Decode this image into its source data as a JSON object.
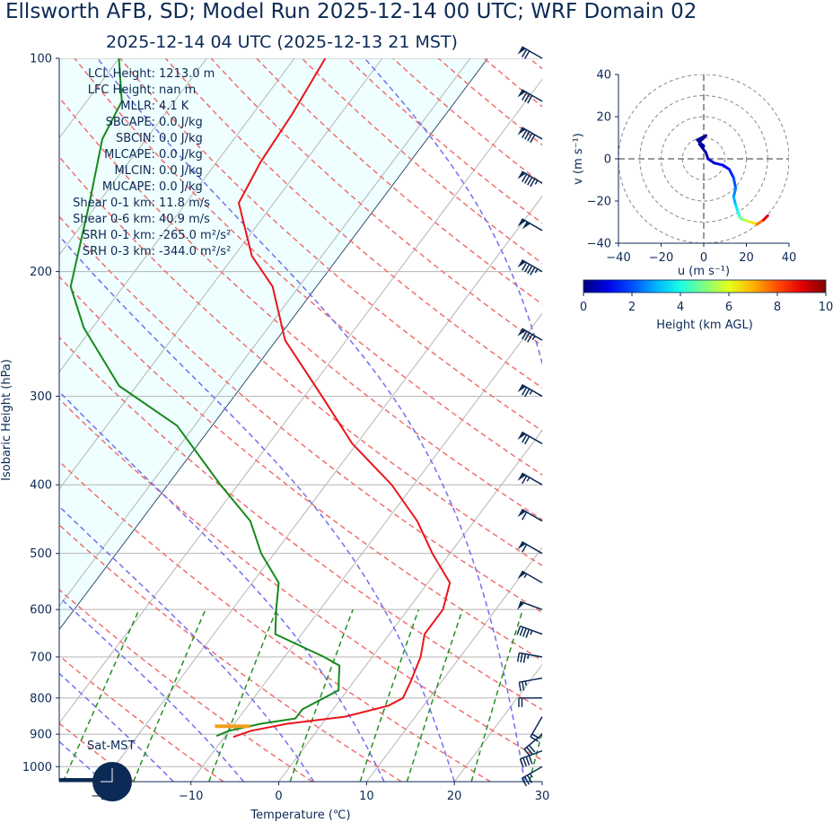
{
  "title": "Ellsworth AFB, SD; Model Run 2025-12-14 00 UTC; WRF Domain 02",
  "subtitle": "2025-12-14 04 UTC  (2025-12-13 21 MST)",
  "colors": {
    "temperature": "#e8161a",
    "dewpoint": "#158a1a",
    "dry_adiabat": "#f07070",
    "moist_adiabat": "#7070f0",
    "mixing_ratio": "#239023",
    "isotherm": "#b5b5b5",
    "cloud_fill": "#effefe",
    "barb": "#0b2a55",
    "inversion": "#f0a020"
  },
  "indices": [
    {
      "label": "LCL Height:",
      "value": "1213.0 m"
    },
    {
      "label": "LFC Height:",
      "value": "nan m"
    },
    {
      "label": "MLLR:",
      "value": "4.1 K"
    },
    {
      "label": "SBCAPE:",
      "value": "0.0 J/kg"
    },
    {
      "label": "SBCIN:",
      "value": "0.0 J/kg"
    },
    {
      "label": "MLCAPE:",
      "value": "0.0 J/kg"
    },
    {
      "label": "MLCIN:",
      "value": "0.0 J/kg"
    },
    {
      "label": "MUCAPE:",
      "value": "0.0 J/kg"
    },
    {
      "label": "Shear 0-1 km:",
      "value": "11.8 m/s"
    },
    {
      "label": "Shear 0-6 km:",
      "value": "40.9 m/s"
    },
    {
      "label": "SRH 0-1 km:",
      "value": "-265.0 m²/s²"
    },
    {
      "label": "SRH 0-3 km:",
      "value": "-344.0 m²/s²"
    }
  ],
  "sat_label": "Sat-MST",
  "chart_data": [
    {
      "type": "line",
      "name": "skew-t",
      "xlabel": "Temperature (℃)",
      "ylabel": "Isobaric Height (hPa)",
      "xlim": [
        -25,
        30
      ],
      "ylim": [
        1050,
        100
      ],
      "y_log": true,
      "x_ticks": [
        -20,
        -10,
        0,
        10,
        20,
        30
      ],
      "x_tick_labels": [
        "−20",
        "−10",
        "0",
        "10",
        "20",
        "30"
      ],
      "y_ticks": [
        100,
        200,
        300,
        400,
        500,
        600,
        700,
        800,
        900,
        1000
      ],
      "y_tick_labels": [
        "100",
        "200",
        "300",
        "400",
        "500",
        "600",
        "700",
        "800",
        "900",
        "1000"
      ],
      "grid": true,
      "series": [
        {
          "key": "temperature",
          "points": [
            [
              908,
              -9.0
            ],
            [
              890,
              -7.5
            ],
            [
              870,
              -4.0
            ],
            [
              850,
              2.0
            ],
            [
              820,
              6.0
            ],
            [
              800,
              7.0
            ],
            [
              760,
              6.5
            ],
            [
              700,
              5.5
            ],
            [
              650,
              4.0
            ],
            [
              600,
              4.0
            ],
            [
              550,
              2.5
            ],
            [
              500,
              -2.0
            ],
            [
              450,
              -6.5
            ],
            [
              400,
              -12.5
            ],
            [
              350,
              -20.5
            ],
            [
              300,
              -28.0
            ],
            [
              250,
              -37.0
            ],
            [
              210,
              -43.0
            ],
            [
              190,
              -48.0
            ],
            [
              160,
              -54.0
            ],
            [
              140,
              -55.0
            ],
            [
              120,
              -55.5
            ],
            [
              100,
              -56.5
            ]
          ]
        },
        {
          "key": "dewpoint",
          "points": [
            [
              905,
              -11.0
            ],
            [
              890,
              -10.0
            ],
            [
              870,
              -7.0
            ],
            [
              855,
              -3.5
            ],
            [
              830,
              -3.5
            ],
            [
              810,
              -2.5
            ],
            [
              780,
              -1.0
            ],
            [
              750,
              -2.0
            ],
            [
              720,
              -3.0
            ],
            [
              700,
              -5.5
            ],
            [
              650,
              -13.0
            ],
            [
              600,
              -15.0
            ],
            [
              550,
              -17.0
            ],
            [
              500,
              -21.5
            ],
            [
              450,
              -25.5
            ],
            [
              400,
              -32.0
            ],
            [
              330,
              -42.0
            ],
            [
              290,
              -52.0
            ],
            [
              240,
              -61.0
            ],
            [
              210,
              -66.0
            ],
            [
              160,
              -71.0
            ],
            [
              130,
              -75.0
            ],
            [
              115,
              -76.0
            ],
            [
              100,
              -80.0
            ]
          ]
        }
      ],
      "inversion_level": {
        "pressure_hPa": 877,
        "temp_range": [
          -12.0,
          -8.0
        ]
      },
      "wind_barbs": [
        {
          "p": 1000,
          "speed_kt": 35,
          "dir_deg": 240
        },
        {
          "p": 950,
          "speed_kt": 40,
          "dir_deg": 250
        },
        {
          "p": 900,
          "speed_kt": 30,
          "dir_deg": 230
        },
        {
          "p": 850,
          "speed_kt": 20,
          "dir_deg": 210
        },
        {
          "p": 800,
          "speed_kt": 20,
          "dir_deg": 270
        },
        {
          "p": 750,
          "speed_kt": 25,
          "dir_deg": 260
        },
        {
          "p": 700,
          "speed_kt": 35,
          "dir_deg": 280
        },
        {
          "p": 650,
          "speed_kt": 45,
          "dir_deg": 290
        },
        {
          "p": 600,
          "speed_kt": 50,
          "dir_deg": 290
        },
        {
          "p": 550,
          "speed_kt": 55,
          "dir_deg": 300
        },
        {
          "p": 500,
          "speed_kt": 60,
          "dir_deg": 300
        },
        {
          "p": 450,
          "speed_kt": 60,
          "dir_deg": 300
        },
        {
          "p": 400,
          "speed_kt": 65,
          "dir_deg": 300
        },
        {
          "p": 350,
          "speed_kt": 70,
          "dir_deg": 300
        },
        {
          "p": 300,
          "speed_kt": 75,
          "dir_deg": 300
        },
        {
          "p": 250,
          "speed_kt": 85,
          "dir_deg": 300
        },
        {
          "p": 200,
          "speed_kt": 95,
          "dir_deg": 300
        },
        {
          "p": 175,
          "speed_kt": 100,
          "dir_deg": 300
        },
        {
          "p": 150,
          "speed_kt": 95,
          "dir_deg": 300
        },
        {
          "p": 130,
          "speed_kt": 90,
          "dir_deg": 300
        },
        {
          "p": 115,
          "speed_kt": 80,
          "dir_deg": 300
        },
        {
          "p": 100,
          "speed_kt": 70,
          "dir_deg": 300
        }
      ]
    },
    {
      "type": "line",
      "name": "hodograph",
      "xlabel": "u (m s⁻¹)",
      "ylabel": "v (m s⁻¹)",
      "xlim": [
        -40,
        40
      ],
      "ylim": [
        -40,
        40
      ],
      "x_ticks": [
        -40,
        -20,
        0,
        20,
        40
      ],
      "x_tick_labels": [
        "−40",
        "−20",
        "0",
        "20",
        "40"
      ],
      "y_ticks": [
        -40,
        -20,
        0,
        20,
        40
      ],
      "y_tick_labels": [
        "−40",
        "−20",
        "0",
        "20",
        "40"
      ],
      "ring_radii": [
        10,
        20,
        30,
        40
      ],
      "points": [
        {
          "u": -2,
          "v": 8,
          "h": 0.0
        },
        {
          "u": 1,
          "v": 11,
          "h": 0.1
        },
        {
          "u": -3,
          "v": 9,
          "h": 0.2
        },
        {
          "u": 0,
          "v": 6,
          "h": 0.3
        },
        {
          "u": -2,
          "v": 7,
          "h": 0.35
        },
        {
          "u": 1,
          "v": 3,
          "h": 0.5
        },
        {
          "u": 2,
          "v": 0,
          "h": 0.7
        },
        {
          "u": 5,
          "v": -2,
          "h": 0.9
        },
        {
          "u": 9,
          "v": -3,
          "h": 1.1
        },
        {
          "u": 12,
          "v": -5,
          "h": 1.4
        },
        {
          "u": 14,
          "v": -9,
          "h": 1.8
        },
        {
          "u": 15,
          "v": -14,
          "h": 2.3
        },
        {
          "u": 14,
          "v": -18,
          "h": 2.8
        },
        {
          "u": 15,
          "v": -22,
          "h": 3.2
        },
        {
          "u": 16,
          "v": -25,
          "h": 3.8
        },
        {
          "u": 17,
          "v": -28,
          "h": 4.5
        },
        {
          "u": 19,
          "v": -29,
          "h": 5.2
        },
        {
          "u": 22,
          "v": -30,
          "h": 6.0
        },
        {
          "u": 25,
          "v": -31,
          "h": 7.0
        },
        {
          "u": 28,
          "v": -29,
          "h": 8.3
        },
        {
          "u": 30,
          "v": -27,
          "h": 9.8
        }
      ]
    }
  ],
  "colorbar": {
    "label": "Height (km AGL)",
    "min": 0,
    "max": 10,
    "ticks": [
      "0",
      "2",
      "4",
      "6",
      "8",
      "10"
    ],
    "colormap": "jet"
  }
}
